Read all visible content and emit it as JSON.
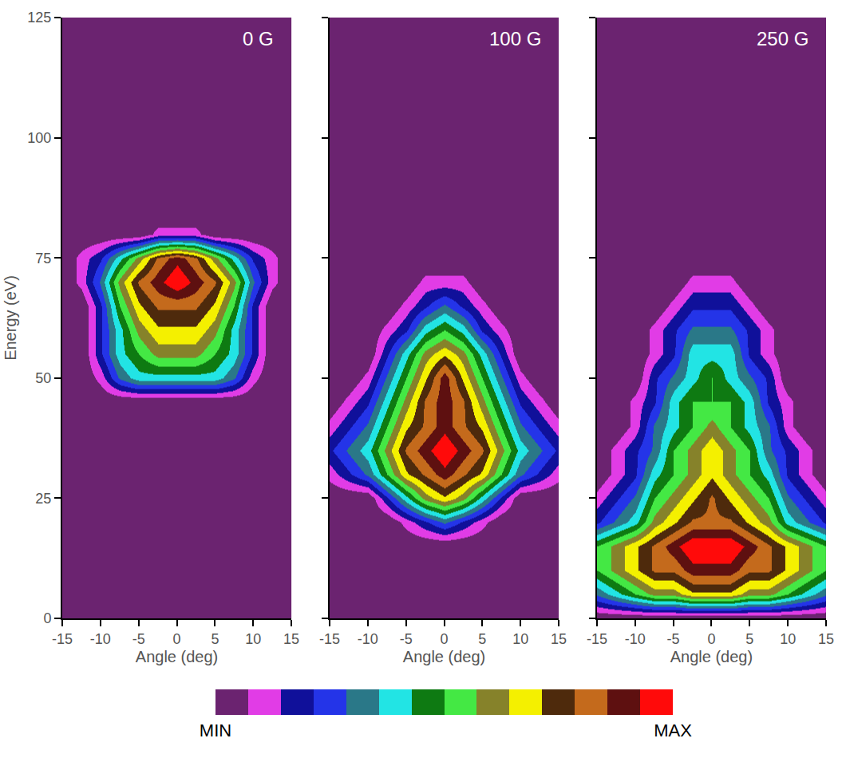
{
  "chart_data": [
    {
      "type": "heatmap",
      "title": "0 G",
      "xlabel": "Angle (deg)",
      "ylabel": "Energy (eV)",
      "x": [
        -15,
        -12.5,
        -10,
        -7.5,
        -5,
        -2.5,
        0,
        2.5,
        5,
        7.5,
        10,
        12.5,
        15
      ],
      "y": [
        0,
        5,
        10,
        15,
        20,
        25,
        30,
        35,
        40,
        45,
        50,
        55,
        60,
        65,
        70,
        75,
        80,
        85,
        90,
        95,
        100
      ],
      "z": [
        [
          0,
          0,
          0,
          0,
          0,
          0,
          0,
          0,
          0,
          0,
          0,
          0,
          0
        ],
        [
          0,
          0,
          0,
          0,
          0,
          0,
          0,
          0,
          0,
          0,
          0,
          0,
          0
        ],
        [
          0,
          0,
          0,
          0,
          0,
          0,
          0,
          0,
          0,
          0,
          0,
          0,
          0
        ],
        [
          0,
          0,
          0,
          0,
          0,
          0,
          0,
          0,
          0,
          0,
          0,
          0,
          0
        ],
        [
          0,
          0,
          0,
          0,
          0,
          0,
          0,
          0,
          0,
          0,
          0,
          0,
          0
        ],
        [
          0,
          0,
          0,
          0,
          0,
          0,
          0,
          0,
          0,
          0,
          0,
          0,
          0
        ],
        [
          0,
          0,
          0,
          0,
          0,
          0,
          0,
          0,
          0,
          0,
          0,
          0,
          0
        ],
        [
          0,
          0,
          0,
          0,
          0,
          0,
          0,
          0,
          0,
          0,
          0,
          0,
          0
        ],
        [
          0,
          0,
          0,
          0,
          0,
          0,
          0,
          0,
          0,
          0,
          0,
          0,
          0
        ],
        [
          0,
          0,
          0,
          0,
          0,
          0,
          0,
          0,
          0,
          0,
          0,
          0,
          0
        ],
        [
          0,
          0,
          1,
          3,
          4,
          4,
          4,
          4,
          4,
          3,
          1,
          0,
          0
        ],
        [
          0,
          0,
          2,
          4,
          5,
          6,
          6,
          6,
          5,
          4,
          2,
          0,
          0
        ],
        [
          0,
          0,
          2,
          4,
          6,
          7,
          7,
          7,
          6,
          4,
          2,
          0,
          0
        ],
        [
          0,
          0,
          2,
          5,
          7,
          8,
          8,
          8,
          7,
          5,
          2,
          0,
          0
        ],
        [
          0,
          1,
          3,
          6,
          8,
          9,
          10,
          9,
          8,
          6,
          3,
          1,
          0
        ],
        [
          0,
          1,
          2,
          4,
          6,
          8,
          9,
          8,
          6,
          4,
          2,
          1,
          0
        ],
        [
          0,
          0,
          0,
          0,
          0,
          1,
          1,
          1,
          0,
          0,
          0,
          0,
          0
        ],
        [
          0,
          0,
          0,
          0,
          0,
          0,
          0,
          0,
          0,
          0,
          0,
          0,
          0
        ],
        [
          0,
          0,
          0,
          0,
          0,
          0,
          0,
          0,
          0,
          0,
          0,
          0,
          0
        ],
        [
          0,
          0,
          0,
          0,
          0,
          0,
          0,
          0,
          0,
          0,
          0,
          0,
          0
        ],
        [
          0,
          0,
          0,
          0,
          0,
          0,
          0,
          0,
          0,
          0,
          0,
          0,
          0
        ]
      ],
      "xlim": [
        -15,
        15
      ],
      "xticks": [
        -15,
        -10,
        -5,
        0,
        5,
        10,
        15
      ],
      "ylim": [
        0,
        125
      ],
      "yticks": [
        0,
        25,
        50,
        75,
        100,
        125
      ],
      "grid": false,
      "colorbar": {
        "range": [
          0,
          10
        ],
        "ticks": [
          {
            "value": 0,
            "label": "MIN"
          },
          {
            "value": 10,
            "label": "MAX"
          }
        ]
      }
    },
    {
      "type": "heatmap",
      "title": "100 G",
      "xlabel": "Angle (deg)",
      "x": [
        -15,
        -12.5,
        -10,
        -7.5,
        -5,
        -2.5,
        0,
        2.5,
        5,
        7.5,
        10,
        12.5,
        15
      ],
      "y": [
        0,
        5,
        10,
        15,
        20,
        25,
        30,
        35,
        40,
        45,
        50,
        55,
        60,
        65,
        70,
        75,
        80,
        85,
        90,
        95,
        100
      ],
      "z": [
        [
          0,
          0,
          0,
          0,
          0,
          0,
          0,
          0,
          0,
          0,
          0,
          0,
          0
        ],
        [
          0,
          0,
          0,
          0,
          0,
          0,
          0,
          0,
          0,
          0,
          0,
          0,
          0
        ],
        [
          0,
          0,
          0,
          0,
          0,
          0,
          0,
          0,
          0,
          0,
          0,
          0,
          0
        ],
        [
          0,
          0,
          0,
          0,
          0,
          0,
          0,
          0,
          0,
          0,
          0,
          0,
          0
        ],
        [
          0,
          0,
          0,
          0,
          1,
          2,
          3,
          2,
          1,
          0,
          0,
          0,
          0
        ],
        [
          0,
          0,
          0,
          2,
          4,
          6,
          7,
          6,
          4,
          2,
          0,
          0,
          0
        ],
        [
          1,
          2,
          3,
          5,
          7,
          8,
          9,
          8,
          7,
          5,
          3,
          2,
          1
        ],
        [
          2,
          3,
          4,
          6,
          8,
          9,
          10,
          9,
          8,
          6,
          4,
          3,
          2
        ],
        [
          1,
          2,
          3,
          5,
          7,
          8,
          9,
          8,
          7,
          5,
          3,
          2,
          1
        ],
        [
          0,
          1,
          2,
          4,
          6,
          8,
          9,
          8,
          6,
          4,
          2,
          1,
          0
        ],
        [
          0,
          0,
          1,
          3,
          5,
          7,
          9,
          7,
          5,
          3,
          1,
          0,
          0
        ],
        [
          0,
          0,
          0,
          2,
          4,
          6,
          7,
          6,
          4,
          2,
          0,
          0,
          0
        ],
        [
          0,
          0,
          0,
          1,
          2,
          4,
          5,
          4,
          2,
          1,
          0,
          0,
          0
        ],
        [
          0,
          0,
          0,
          0,
          1,
          2,
          3,
          2,
          1,
          0,
          0,
          0,
          0
        ],
        [
          0,
          0,
          0,
          0,
          0,
          1,
          1,
          1,
          0,
          0,
          0,
          0,
          0
        ],
        [
          0,
          0,
          0,
          0,
          0,
          0,
          0,
          0,
          0,
          0,
          0,
          0,
          0
        ],
        [
          0,
          0,
          0,
          0,
          0,
          0,
          0,
          0,
          0,
          0,
          0,
          0,
          0
        ],
        [
          0,
          0,
          0,
          0,
          0,
          0,
          0,
          0,
          0,
          0,
          0,
          0,
          0
        ],
        [
          0,
          0,
          0,
          0,
          0,
          0,
          0,
          0,
          0,
          0,
          0,
          0,
          0
        ],
        [
          0,
          0,
          0,
          0,
          0,
          0,
          0,
          0,
          0,
          0,
          0,
          0,
          0
        ],
        [
          0,
          0,
          0,
          0,
          0,
          0,
          0,
          0,
          0,
          0,
          0,
          0,
          0
        ]
      ],
      "xlim": [
        -15,
        15
      ],
      "xticks": [
        -15,
        -10,
        -5,
        0,
        5,
        10,
        15
      ],
      "ylim": [
        0,
        125
      ],
      "yticks": [
        0,
        25,
        50,
        75,
        100,
        125
      ],
      "grid": false,
      "tick_labels": "x"
    },
    {
      "type": "heatmap",
      "title": "250 G",
      "xlabel": "Angle (deg)",
      "x": [
        -15,
        -12.5,
        -10,
        -7.5,
        -5,
        -2.5,
        0,
        2.5,
        5,
        7.5,
        10,
        12.5,
        15
      ],
      "y": [
        0,
        5,
        10,
        15,
        20,
        25,
        30,
        35,
        40,
        45,
        50,
        55,
        60,
        65,
        70,
        75,
        80,
        85,
        90,
        95,
        100
      ],
      "z": [
        [
          0,
          0,
          0,
          0,
          0,
          0,
          0,
          0,
          0,
          0,
          0,
          0,
          0
        ],
        [
          3,
          4,
          5,
          6,
          6,
          7,
          7,
          7,
          6,
          6,
          5,
          4,
          3
        ],
        [
          5,
          6,
          7,
          8,
          8,
          9,
          9,
          9,
          8,
          8,
          7,
          6,
          5
        ],
        [
          5,
          6,
          7,
          8,
          9,
          10,
          10,
          10,
          9,
          8,
          7,
          6,
          5
        ],
        [
          2,
          3,
          4,
          6,
          7,
          8,
          8,
          8,
          7,
          6,
          4,
          3,
          2
        ],
        [
          1,
          2,
          3,
          5,
          6,
          7,
          8,
          7,
          6,
          5,
          3,
          2,
          1
        ],
        [
          0,
          1,
          2,
          4,
          5,
          6,
          7,
          6,
          5,
          4,
          2,
          1,
          0
        ],
        [
          0,
          1,
          2,
          3,
          5,
          6,
          7,
          6,
          5,
          3,
          2,
          1,
          0
        ],
        [
          0,
          0,
          1,
          3,
          4,
          5,
          6,
          5,
          4,
          3,
          1,
          0,
          0
        ],
        [
          0,
          0,
          1,
          2,
          4,
          5,
          5,
          5,
          4,
          2,
          1,
          0,
          0
        ],
        [
          0,
          0,
          0,
          2,
          3,
          4,
          5,
          4,
          3,
          2,
          0,
          0,
          0
        ],
        [
          0,
          0,
          0,
          1,
          2,
          4,
          4,
          4,
          2,
          1,
          0,
          0,
          0
        ],
        [
          0,
          0,
          0,
          1,
          2,
          3,
          3,
          3,
          2,
          1,
          0,
          0,
          0
        ],
        [
          0,
          0,
          0,
          0,
          1,
          2,
          2,
          2,
          1,
          0,
          0,
          0,
          0
        ],
        [
          0,
          0,
          0,
          0,
          0,
          1,
          1,
          1,
          0,
          0,
          0,
          0,
          0
        ],
        [
          0,
          0,
          0,
          0,
          0,
          0,
          0,
          0,
          0,
          0,
          0,
          0,
          0
        ],
        [
          0,
          0,
          0,
          0,
          0,
          0,
          0,
          0,
          0,
          0,
          0,
          0,
          0
        ],
        [
          0,
          0,
          0,
          0,
          0,
          0,
          0,
          0,
          0,
          0,
          0,
          0,
          0
        ],
        [
          0,
          0,
          0,
          0,
          0,
          0,
          0,
          0,
          0,
          0,
          0,
          0,
          0
        ],
        [
          0,
          0,
          0,
          0,
          0,
          0,
          0,
          0,
          0,
          0,
          0,
          0,
          0
        ],
        [
          0,
          0,
          0,
          0,
          0,
          0,
          0,
          0,
          0,
          0,
          0,
          0,
          0
        ]
      ],
      "xlim": [
        -15,
        15
      ],
      "xticks": [
        -15,
        -10,
        -5,
        0,
        5,
        10,
        15
      ],
      "ylim": [
        0,
        125
      ],
      "yticks": [
        0,
        25,
        50,
        75,
        100,
        125
      ],
      "grid": false,
      "tick_labels": "x"
    }
  ]
}
